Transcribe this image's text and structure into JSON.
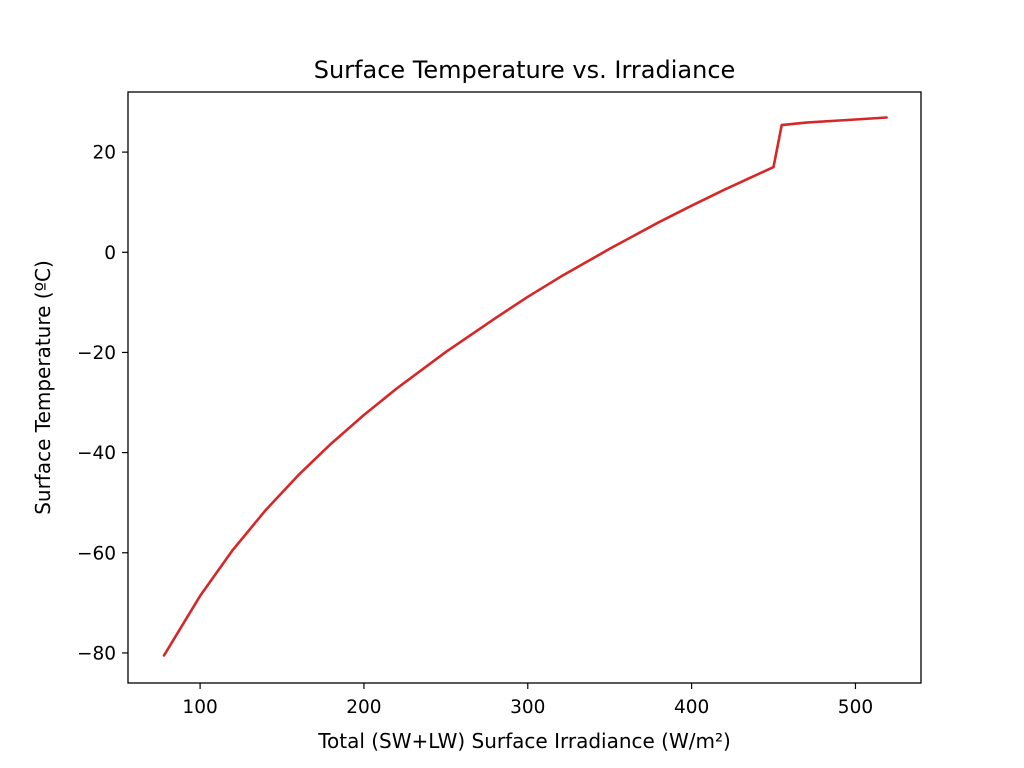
{
  "chart_data": {
    "type": "line",
    "title": "Surface Temperature vs. Irradiance",
    "xlabel": "Total (SW+LW) Surface Irradiance (W/m²)",
    "ylabel": "Surface Temperature (ºC)",
    "xlim": [
      56,
      540
    ],
    "ylim": [
      -86,
      32
    ],
    "xticks": [
      100,
      200,
      300,
      400,
      500
    ],
    "yticks": [
      -80,
      -60,
      -40,
      -20,
      0,
      20
    ],
    "xtick_labels": [
      "100",
      "200",
      "300",
      "400",
      "500"
    ],
    "ytick_labels": [
      "−80",
      "−60",
      "−40",
      "−20",
      "0",
      "20"
    ],
    "grid": false,
    "legend": null,
    "series": [
      {
        "name": "Surface Temperature",
        "color": "#d62728",
        "x": [
          78,
          90,
          100,
          120,
          140,
          160,
          180,
          200,
          220,
          250,
          280,
          300,
          320,
          350,
          380,
          400,
          420,
          440,
          450,
          455,
          470,
          490,
          500,
          519
        ],
        "y": [
          -80.5,
          -74,
          -68.6,
          -59.4,
          -51.5,
          -44.5,
          -38.2,
          -32.5,
          -27.2,
          -19.9,
          -13.2,
          -8.9,
          -4.9,
          0.7,
          6.0,
          9.3,
          12.5,
          15.5,
          17.0,
          25.4,
          25.9,
          26.3,
          26.5,
          26.9
        ]
      }
    ]
  },
  "colors": {
    "line": "#d62728",
    "axes": "#000000",
    "background": "#ffffff"
  }
}
